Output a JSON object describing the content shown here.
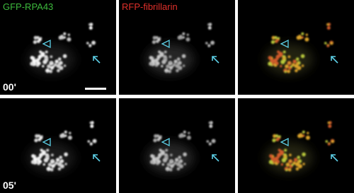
{
  "labels": {
    "channel_1": "GFP-RPA43",
    "channel_2": "RFP-fibrillarin"
  },
  "timepoints": [
    "00'",
    "05'"
  ]
}
